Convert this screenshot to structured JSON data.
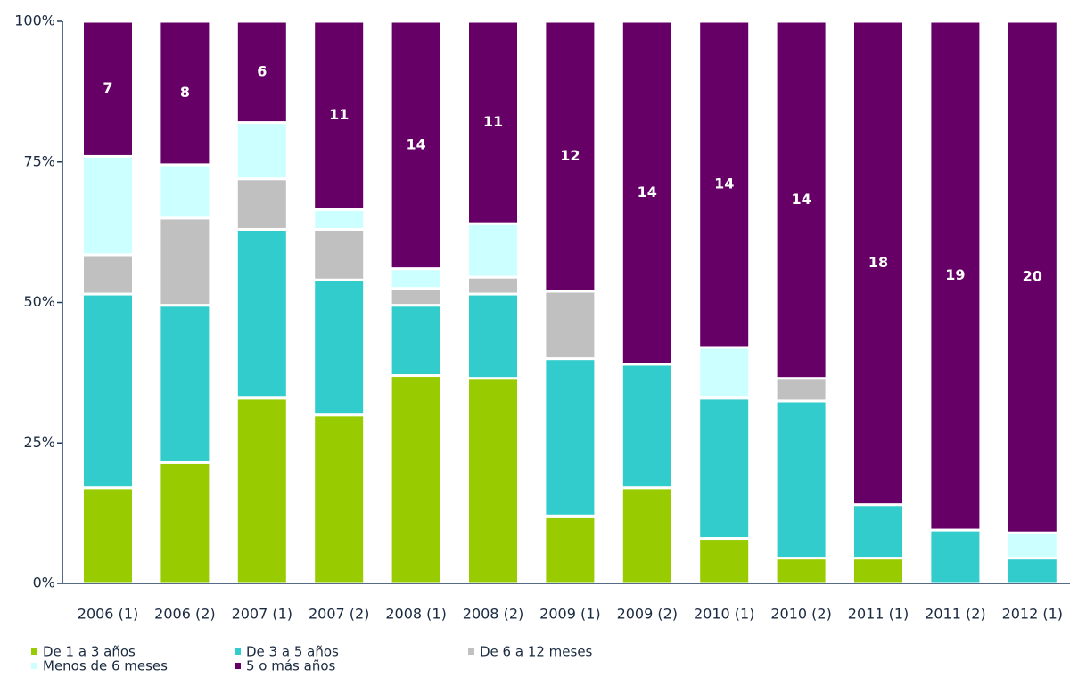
{
  "chart_data": {
    "type": "stacked_bar_percent",
    "categories": [
      "2006 (1)",
      "2006 (2)",
      "2007 (1)",
      "2007 (2)",
      "2008 (1)",
      "2008 (2)",
      "2009 (1)",
      "2009 (2)",
      "2010 (1)",
      "2010 (2)",
      "2011 (1)",
      "2011 (2)",
      "2012 (1)"
    ],
    "series": [
      {
        "name": "De 1 a 3 años",
        "color": "#99cc00",
        "values": [
          17,
          21.5,
          33,
          30,
          37,
          36.5,
          12,
          17,
          8,
          4.5,
          4.5,
          0,
          0
        ]
      },
      {
        "name": "De 3 a 5 años",
        "color": "#33cccc",
        "values": [
          34.5,
          28,
          30,
          24,
          12.5,
          15,
          28,
          22,
          25,
          28,
          9.5,
          9.5,
          4.5
        ]
      },
      {
        "name": "De 6 a 12 meses",
        "color": "#c0c0c0",
        "values": [
          7,
          15.5,
          9,
          9,
          3,
          3,
          12,
          0,
          0,
          4,
          0,
          0,
          0
        ]
      },
      {
        "name": "Menos de 6 meses",
        "color": "#ccffff",
        "values": [
          17.5,
          9.5,
          10,
          3.5,
          3.5,
          9.5,
          0,
          0,
          9,
          0,
          0,
          0,
          4.5
        ]
      },
      {
        "name": "5 o más años",
        "color": "#660066",
        "values": [
          24,
          25.5,
          18,
          33.5,
          44,
          36,
          48,
          61,
          58,
          63.5,
          86,
          90.5,
          91
        ],
        "counts": [
          7,
          8,
          6,
          11,
          14,
          11,
          12,
          14,
          14,
          14,
          18,
          19,
          20
        ]
      }
    ],
    "ylim": [
      0,
      100
    ],
    "yticks": [
      {
        "value": 0,
        "label": "0%"
      },
      {
        "value": 25,
        "label": "25%"
      },
      {
        "value": 50,
        "label": "50%"
      },
      {
        "value": 75,
        "label": "75%"
      },
      {
        "value": 100,
        "label": "100%"
      }
    ]
  }
}
